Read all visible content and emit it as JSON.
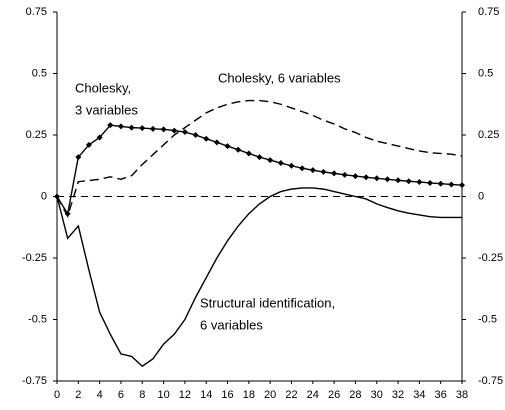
{
  "chart_data": {
    "type": "line",
    "x": [
      0,
      1,
      2,
      3,
      4,
      5,
      6,
      7,
      8,
      9,
      10,
      11,
      12,
      13,
      14,
      15,
      16,
      17,
      18,
      19,
      20,
      21,
      22,
      23,
      24,
      25,
      26,
      27,
      28,
      29,
      30,
      31,
      32,
      33,
      34,
      35,
      36,
      37,
      38
    ],
    "series": [
      {
        "color": "#000000",
        "dash": false,
        "marker": "diamond",
        "values": [
          0,
          -0.07,
          0.16,
          0.21,
          0.24,
          0.29,
          0.285,
          0.28,
          0.278,
          0.275,
          0.273,
          0.268,
          0.262,
          0.25,
          0.235,
          0.22,
          0.205,
          0.19,
          0.175,
          0.16,
          0.148,
          0.136,
          0.125,
          0.115,
          0.107,
          0.1,
          0.094,
          0.088,
          0.083,
          0.078,
          0.074,
          0.07,
          0.066,
          0.062,
          0.059,
          0.055,
          0.052,
          0.049,
          0.046
        ]
      },
      {
        "color": "#000000",
        "dash": true,
        "marker": "none",
        "values": [
          0,
          -0.08,
          0.06,
          0.065,
          0.07,
          0.08,
          0.07,
          0.085,
          0.13,
          0.17,
          0.21,
          0.25,
          0.28,
          0.31,
          0.34,
          0.36,
          0.375,
          0.385,
          0.39,
          0.39,
          0.385,
          0.375,
          0.36,
          0.345,
          0.33,
          0.31,
          0.295,
          0.275,
          0.26,
          0.24,
          0.225,
          0.215,
          0.205,
          0.195,
          0.185,
          0.178,
          0.175,
          0.172,
          0.165
        ]
      },
      {
        "color": "#000000",
        "dash": false,
        "marker": "none",
        "values": [
          0,
          -0.17,
          -0.12,
          -0.3,
          -0.47,
          -0.56,
          -0.64,
          -0.65,
          -0.69,
          -0.66,
          -0.6,
          -0.56,
          -0.5,
          -0.41,
          -0.33,
          -0.25,
          -0.18,
          -0.12,
          -0.07,
          -0.03,
          0,
          0.02,
          0.03,
          0.035,
          0.035,
          0.03,
          0.02,
          0.01,
          0,
          -0.01,
          -0.03,
          -0.045,
          -0.058,
          -0.068,
          -0.075,
          -0.082,
          -0.085,
          -0.085,
          -0.085
        ]
      }
    ],
    "annotations": [
      [
        "Cholesky,",
        "3 variables"
      ],
      [
        "Cholesky, 6 variables"
      ],
      [
        "Structural identification,",
        "6 variables"
      ]
    ],
    "xlim": [
      0,
      38
    ],
    "xticks": [
      0,
      2,
      4,
      6,
      8,
      10,
      12,
      14,
      16,
      18,
      20,
      22,
      24,
      26,
      28,
      30,
      32,
      34,
      36,
      38
    ],
    "ylim": [
      -0.75,
      0.75
    ],
    "yticks": [
      0.75,
      0.5,
      0.25,
      0,
      -0.25,
      -0.5,
      -0.75
    ],
    "y2lim": [
      -0.75,
      0.75
    ],
    "y2ticks": [
      0.75,
      0.5,
      0.25,
      0,
      -0.25,
      -0.5,
      -0.75
    ],
    "zero_line": true
  }
}
